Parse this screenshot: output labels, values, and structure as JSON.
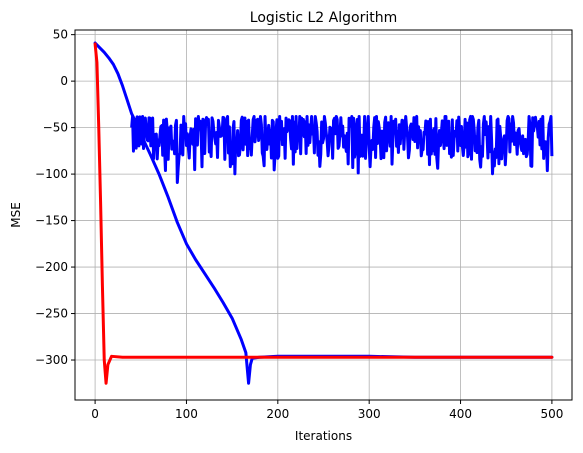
{
  "chart_data": {
    "type": "line",
    "title": "Logistic L2 Algorithm",
    "xlabel": "Iterations",
    "ylabel": "MSE",
    "xlim": [
      -22,
      522
    ],
    "ylim": [
      -343,
      55
    ],
    "xticks": [
      0,
      100,
      200,
      300,
      400,
      500
    ],
    "yticks": [
      50,
      0,
      -50,
      -100,
      -150,
      -200,
      -250,
      -300
    ],
    "grid": true,
    "series": [
      {
        "color": "#0000ff",
        "line_width": 3,
        "points": [
          [
            0,
            41
          ],
          [
            5,
            36
          ],
          [
            10,
            31
          ],
          [
            15,
            25
          ],
          [
            20,
            18
          ],
          [
            25,
            8
          ],
          [
            30,
            -5
          ],
          [
            35,
            -20
          ],
          [
            40,
            -35
          ],
          [
            45,
            -45
          ],
          [
            50,
            -57
          ],
          [
            60,
            -78
          ],
          [
            70,
            -100
          ],
          [
            80,
            -125
          ],
          [
            90,
            -152
          ],
          [
            100,
            -175
          ],
          [
            110,
            -192
          ],
          [
            120,
            -207
          ],
          [
            130,
            -222
          ],
          [
            140,
            -238
          ],
          [
            150,
            -255
          ],
          [
            160,
            -278
          ],
          [
            165,
            -292
          ],
          [
            168,
            -325
          ],
          [
            170,
            -305
          ],
          [
            172,
            -298
          ],
          [
            180,
            -297
          ],
          [
            200,
            -296
          ],
          [
            250,
            -296
          ],
          [
            300,
            -296
          ],
          [
            350,
            -297
          ],
          [
            400,
            -297
          ],
          [
            450,
            -297
          ],
          [
            500,
            -297
          ]
        ],
        "noisy_segment": {
          "x_start": 40,
          "x_end": 500,
          "center": -58,
          "low": -100,
          "high": -38,
          "min_spike": {
            "x": 90,
            "y": -109
          }
        }
      },
      {
        "color": "#ff0000",
        "line_width": 3,
        "points": [
          [
            0,
            40
          ],
          [
            2,
            20
          ],
          [
            4,
            -50
          ],
          [
            6,
            -130
          ],
          [
            8,
            -220
          ],
          [
            10,
            -300
          ],
          [
            12,
            -325
          ],
          [
            14,
            -305
          ],
          [
            18,
            -296
          ],
          [
            30,
            -297
          ],
          [
            100,
            -297
          ],
          [
            200,
            -297
          ],
          [
            300,
            -297
          ],
          [
            400,
            -297
          ],
          [
            500,
            -297
          ]
        ]
      }
    ]
  }
}
